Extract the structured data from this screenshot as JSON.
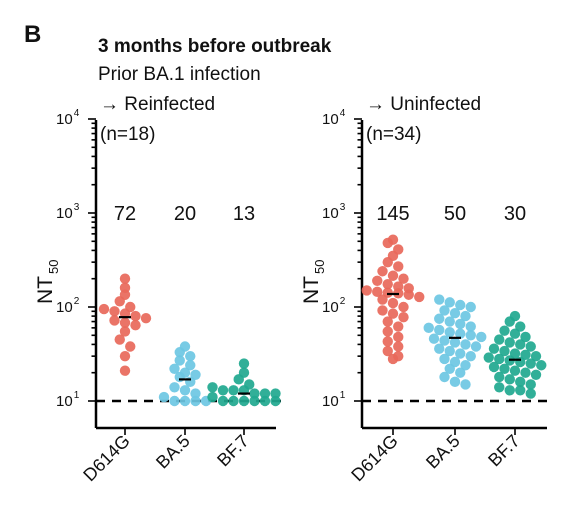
{
  "panel_letter": "B",
  "title": "3 months before outbreak",
  "subtitle": "Prior BA.1 infection",
  "chart_data": [
    {
      "type": "scatter",
      "group_label": "→ Reinfected",
      "group_n": "(n=18)",
      "ylabel": "NT",
      "ylabel_sub": "50",
      "yscale": "log",
      "ylim": [
        10,
        10000
      ],
      "y_ticks": [
        "10",
        "10",
        "10",
        "10"
      ],
      "y_tick_exps": [
        "1",
        "2",
        "3",
        "4"
      ],
      "limit_of_detection": 10,
      "categories": [
        "D614G",
        "BA.5",
        "BF.7"
      ],
      "colors": [
        "#e8685a",
        "#6cc7e3",
        "#1fa88f"
      ],
      "geometric_means": [
        "72",
        "20",
        "13"
      ],
      "series": [
        {
          "values": [
            200,
            160,
            135,
            115,
            100,
            95,
            90,
            85,
            80,
            76,
            72,
            68,
            64,
            55,
            45,
            38,
            30,
            21
          ]
        },
        {
          "values": [
            38,
            33,
            30,
            27,
            24,
            22,
            20,
            19,
            18,
            16,
            14,
            13,
            12,
            11,
            10,
            10,
            10,
            10
          ]
        },
        {
          "values": [
            25,
            20,
            17,
            15,
            14,
            13,
            13,
            13,
            12,
            12,
            12,
            11,
            10,
            10,
            10,
            10,
            10,
            10
          ]
        }
      ]
    },
    {
      "type": "scatter",
      "group_label": "→ Uninfected",
      "group_n": "(n=34)",
      "ylabel": "NT",
      "ylabel_sub": "50",
      "yscale": "log",
      "ylim": [
        10,
        10000
      ],
      "y_ticks": [
        "10",
        "10",
        "10",
        "10"
      ],
      "y_tick_exps": [
        "1",
        "2",
        "3",
        "4"
      ],
      "limit_of_detection": 10,
      "categories": [
        "D614G",
        "BA.5",
        "BF.7"
      ],
      "colors": [
        "#e8685a",
        "#6cc7e3",
        "#1fa88f"
      ],
      "geometric_means": [
        "145",
        "50",
        "30"
      ],
      "series": [
        {
          "values": [
            520,
            480,
            410,
            350,
            300,
            270,
            240,
            215,
            200,
            190,
            175,
            165,
            158,
            150,
            145,
            142,
            140,
            135,
            128,
            120,
            110,
            100,
            92,
            85,
            78,
            70,
            62,
            55,
            48,
            43,
            38,
            34,
            30,
            28
          ]
        },
        {
          "values": [
            120,
            112,
            105,
            100,
            92,
            86,
            80,
            75,
            70,
            66,
            62,
            60,
            57,
            54,
            52,
            50,
            48,
            46,
            44,
            42,
            40,
            38,
            36,
            34,
            32,
            30,
            28,
            26,
            24,
            22,
            20,
            18,
            16,
            15
          ]
        },
        {
          "values": [
            80,
            70,
            62,
            56,
            52,
            48,
            45,
            42,
            40,
            38,
            36,
            34,
            32,
            31,
            30,
            29,
            28,
            27,
            26,
            25,
            24,
            23,
            22,
            21,
            20,
            19,
            18,
            17,
            16,
            15,
            14,
            13,
            13,
            12
          ]
        }
      ]
    }
  ]
}
